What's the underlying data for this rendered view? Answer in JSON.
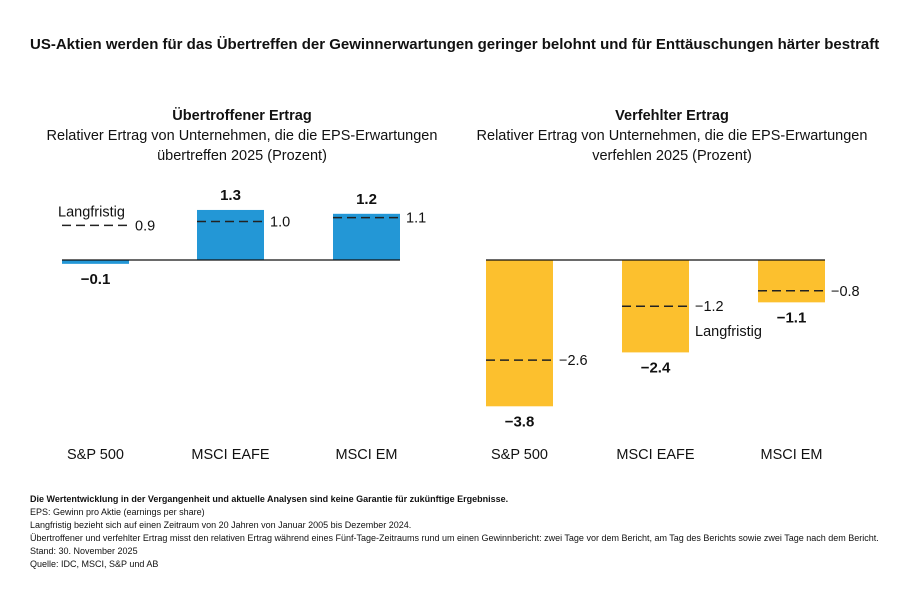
{
  "title": "US-Aktien werden für das Übertreffen der Gewinnerwartungen geringer belohnt und für Enttäuschungen härter bestraft",
  "colors": {
    "positive_bar": "#2397d6",
    "negative_bar": "#fcc02e",
    "axis": "#111111",
    "dash": "#222222"
  },
  "chart_data": [
    {
      "type": "bar",
      "title": "Übertroffener Ertrag",
      "subtitle": "Relativer Ertrag von Unternehmen, die die EPS-Erwartungen übertreffen 2025 (Prozent)",
      "categories": [
        "S&P 500",
        "MSCI EAFE",
        "MSCI EM"
      ],
      "values": [
        -0.1,
        1.3,
        1.2
      ],
      "value_labels": [
        "−0.1",
        "1.3",
        "1.2"
      ],
      "long_term": [
        0.9,
        1.0,
        1.1
      ],
      "long_term_labels": [
        "0.9",
        "1.0",
        "1.1"
      ],
      "long_term_legend": "Langfristig",
      "color": "#2397d6"
    },
    {
      "type": "bar",
      "title": "Verfehlter Ertrag",
      "subtitle": "Relativer Ertrag von Unternehmen, die die EPS-Erwartungen verfehlen 2025 (Prozent)",
      "categories": [
        "S&P 500",
        "MSCI EAFE",
        "MSCI EM"
      ],
      "values": [
        -3.8,
        -2.4,
        -1.1
      ],
      "value_labels": [
        "−3.8",
        "−2.4",
        "−1.1"
      ],
      "long_term": [
        -2.6,
        -1.2,
        -0.8
      ],
      "long_term_labels": [
        "−2.6",
        "−1.2",
        "−0.8"
      ],
      "long_term_legend": "Langfristig",
      "color": "#fcc02e"
    }
  ],
  "footnotes": {
    "disclaimer": "Die Wertentwicklung in der Vergangenheit und aktuelle Analysen sind keine Garantie für zukünftige Ergebnisse.",
    "lines": [
      "EPS: Gewinn pro Aktie (earnings per share)",
      "Langfristig bezieht sich auf einen Zeitraum von 20 Jahren von Januar 2005 bis Dezember 2024.",
      "Übertroffener und verfehlter Ertrag misst den relativen Ertrag während eines Fünf-Tage-Zeitraums rund um einen Gewinnbericht: zwei Tage vor dem Bericht, am Tag des Berichts sowie zwei Tage nach dem Bericht.",
      "Stand: 30. November 2025",
      "Quelle: IDC, MSCI, S&P und AB"
    ]
  }
}
